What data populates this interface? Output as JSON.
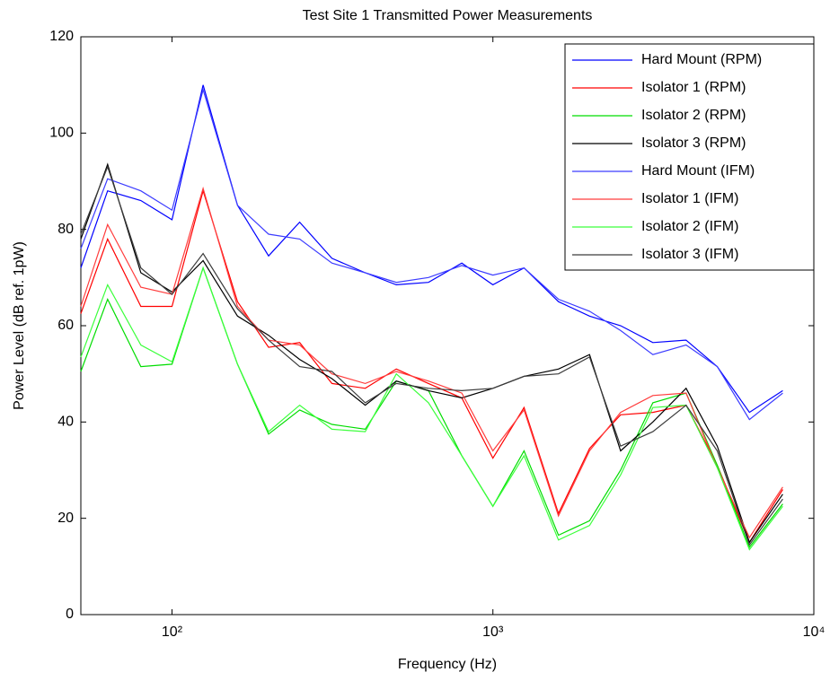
{
  "chart_data": {
    "type": "line",
    "title": "Test Site 1 Transmitted Power Measurements",
    "xlabel": "Frequency (Hz)",
    "ylabel": "Power Level (dB ref. 1pW)",
    "xscale": "log",
    "xlim": [
      52,
      10000
    ],
    "xticks": [
      {
        "value": 100,
        "label": "10²"
      },
      {
        "value": 1000,
        "label": "10³"
      },
      {
        "value": 10000,
        "label": "10⁴"
      }
    ],
    "ylim": [
      0,
      120
    ],
    "yticks": [
      0,
      20,
      40,
      60,
      80,
      100,
      120
    ],
    "legend": "upper right",
    "x": [
      52,
      63,
      80,
      100,
      125,
      160,
      200,
      250,
      315,
      400,
      500,
      630,
      800,
      1000,
      1250,
      1600,
      2000,
      2500,
      3150,
      4000,
      5000,
      6300,
      8000
    ],
    "series": [
      {
        "name": "Hard Mount (RPM)",
        "color": "#0000ff",
        "values": [
          72,
          88,
          86,
          82,
          110,
          85,
          74.5,
          81.5,
          74,
          71,
          68.5,
          69,
          73,
          68.5,
          72,
          65,
          62,
          60,
          56.5,
          57,
          51.5,
          42,
          46.5
        ]
      },
      {
        "name": "Isolator 1 (RPM)",
        "color": "#ff0000",
        "values": [
          62.5,
          78,
          64,
          64,
          88,
          65,
          55.5,
          56.5,
          48,
          47,
          51,
          48,
          45,
          32.5,
          43,
          21,
          34.5,
          41.5,
          42,
          43.5,
          31,
          15,
          26
        ]
      },
      {
        "name": "Isolator 2 (RPM)",
        "color": "#00dd00",
        "values": [
          50.5,
          65.5,
          51.5,
          52,
          72,
          52,
          37.5,
          42.5,
          39.5,
          38.5,
          48.5,
          46.5,
          33,
          22.5,
          34,
          16.5,
          19.5,
          30,
          44,
          46,
          31,
          14,
          23
        ]
      },
      {
        "name": "Isolator 3 (RPM)",
        "color": "#000000",
        "values": [
          78,
          93.5,
          71,
          67,
          73.5,
          62,
          58,
          53,
          49,
          43.5,
          48.5,
          46.5,
          45,
          47,
          49.5,
          51,
          54,
          34,
          40,
          47,
          35,
          15,
          25
        ]
      },
      {
        "name": "Hard Mount (IFM)",
        "color": "#3c3cff",
        "values": [
          76,
          90.5,
          88,
          84,
          109,
          85,
          79,
          78,
          73,
          71,
          69,
          70,
          72.5,
          70.5,
          72,
          65.5,
          63,
          59,
          54,
          56,
          51.5,
          40.5,
          46
        ]
      },
      {
        "name": "Isolator 1 (IFM)",
        "color": "#ff3c3c",
        "values": [
          64,
          81,
          68,
          66.5,
          88.5,
          64,
          57,
          56,
          50,
          48,
          50.5,
          48.5,
          46,
          34,
          42.5,
          20.5,
          34,
          42,
          45.5,
          46,
          30.5,
          16,
          26.5
        ]
      },
      {
        "name": "Isolator 2 (IFM)",
        "color": "#3cff3c",
        "values": [
          53.5,
          68.5,
          56,
          52.5,
          72,
          52,
          38,
          43.5,
          38.5,
          38,
          50,
          44,
          33,
          22.5,
          33,
          15.5,
          18.5,
          29,
          43,
          43.5,
          30.5,
          13.5,
          22.5
        ]
      },
      {
        "name": "Isolator 3 (IFM)",
        "color": "#3c3c3c",
        "values": [
          79,
          93,
          72,
          66.5,
          75,
          63.5,
          57,
          51.5,
          50.5,
          44,
          48,
          47,
          46.5,
          47,
          49.5,
          50,
          53.5,
          35,
          38,
          43.5,
          34,
          14.5,
          24
        ]
      }
    ]
  }
}
